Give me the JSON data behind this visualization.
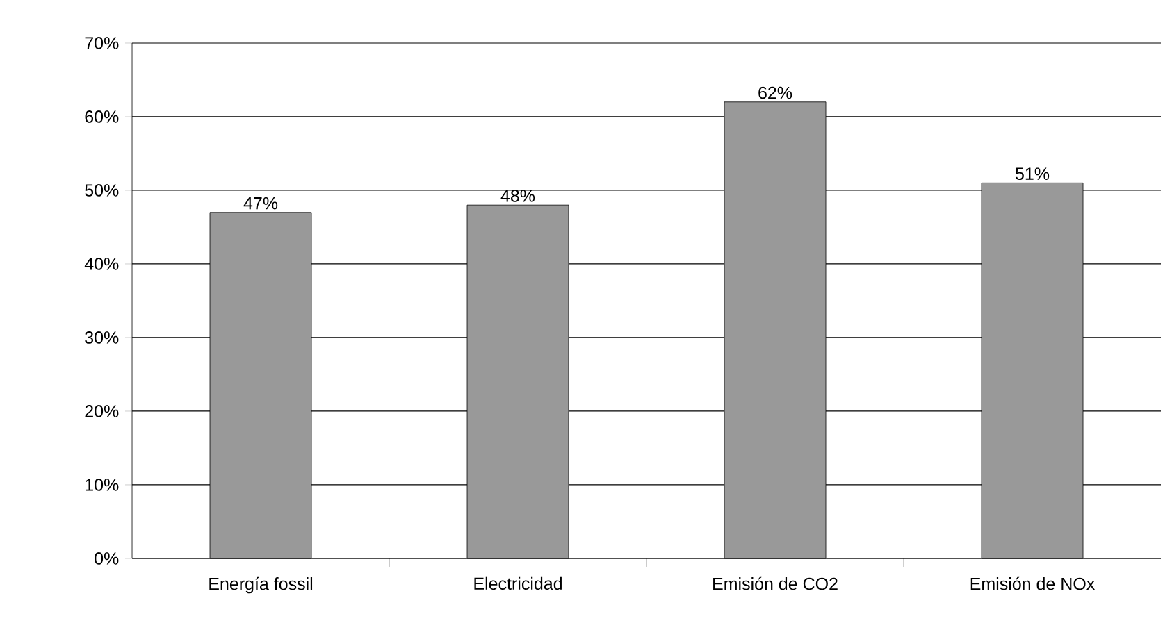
{
  "chart_data": {
    "type": "bar",
    "categories": [
      "Energía fossil",
      "Electricidad",
      "Emisión de CO2",
      "Emisión de NOx"
    ],
    "values": [
      47,
      48,
      62,
      51
    ],
    "value_labels": [
      "47%",
      "48%",
      "62%",
      "51%"
    ],
    "color": "#999999",
    "ylim": [
      0,
      70
    ],
    "yticks": [
      {
        "value": 0,
        "label": "0%"
      },
      {
        "value": 10,
        "label": "10%"
      },
      {
        "value": 20,
        "label": "20%"
      },
      {
        "value": 30,
        "label": "30%"
      },
      {
        "value": 40,
        "label": "40%"
      },
      {
        "value": 50,
        "label": "50%"
      },
      {
        "value": 60,
        "label": "60%"
      },
      {
        "value": 70,
        "label": "70%"
      }
    ],
    "grid": "y"
  }
}
